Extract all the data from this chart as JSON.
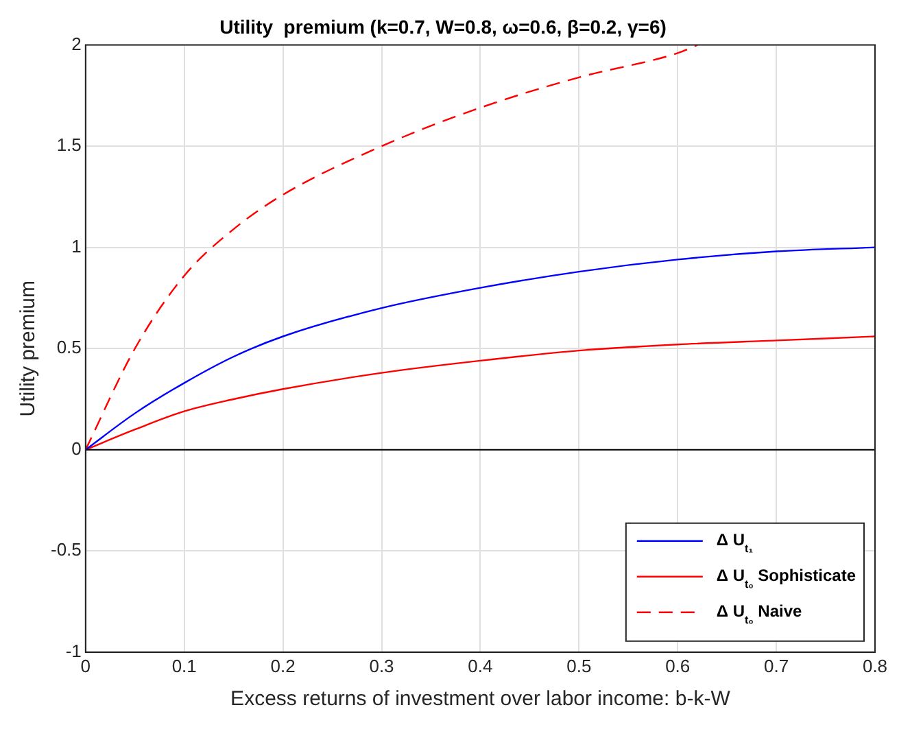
{
  "chart_data": {
    "type": "line",
    "title": "Utility  premium (k=0.7, W=0.8, ω=0.6, β=0.2, γ=6)",
    "xlabel": "Excess returns of investment over labor income: b-k-W",
    "ylabel": "Utility premium",
    "xlim": [
      0,
      0.8
    ],
    "xticks": [
      0,
      0.1,
      0.2,
      0.3,
      0.4,
      0.5,
      0.6,
      0.7,
      0.8
    ],
    "ylim": [
      -1,
      2
    ],
    "yticks": [
      -1,
      -0.5,
      0,
      0.5,
      1,
      1.5,
      2
    ],
    "grid": true,
    "legend": "bottom right",
    "marker": "none",
    "ref_lines": [
      {
        "axis": "y",
        "value": 0,
        "color": "#000000"
      }
    ],
    "series": [
      {
        "name": "Δ U$_{t₁}$",
        "color": "#0000ff",
        "line_style": "solid",
        "x": [
          0,
          0.05,
          0.1,
          0.15,
          0.2,
          0.3,
          0.4,
          0.5,
          0.6,
          0.7,
          0.8
        ],
        "values": [
          0,
          0.18,
          0.33,
          0.46,
          0.56,
          0.7,
          0.8,
          0.88,
          0.94,
          0.98,
          1.0
        ]
      },
      {
        "name": "Δ U$_{t₀}$ Sophisticate",
        "color": "#ff0000",
        "line_style": "solid",
        "x": [
          0,
          0.05,
          0.1,
          0.15,
          0.2,
          0.3,
          0.4,
          0.5,
          0.6,
          0.7,
          0.8
        ],
        "values": [
          0,
          0.1,
          0.19,
          0.25,
          0.3,
          0.38,
          0.44,
          0.49,
          0.52,
          0.54,
          0.56
        ]
      },
      {
        "name": "Δ U$_{t₀}$ Naive",
        "color": "#ff0000",
        "line_style": "dashed",
        "x": [
          0,
          0.05,
          0.1,
          0.15,
          0.2,
          0.3,
          0.4,
          0.5,
          0.6,
          0.62
        ],
        "values": [
          0,
          0.5,
          0.86,
          1.09,
          1.26,
          1.5,
          1.69,
          1.84,
          1.96,
          2.0
        ]
      }
    ]
  }
}
